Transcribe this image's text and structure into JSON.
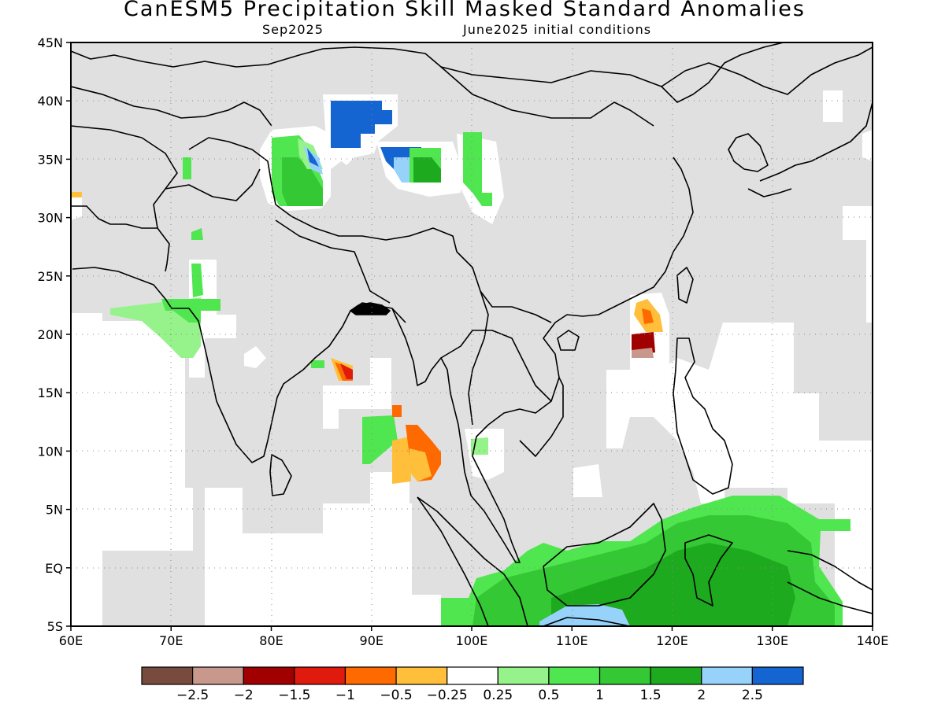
{
  "title": "CanESM5 Precipitation Skill Masked Standard Anomalies",
  "subtitle_left": "Sep2025",
  "subtitle_right": "June2025 initial conditions",
  "map": {
    "lon_range": [
      60,
      140
    ],
    "lat_range": [
      -5,
      45
    ],
    "lon_ticks": [
      "60E",
      "70E",
      "80E",
      "90E",
      "100E",
      "110E",
      "120E",
      "130E",
      "140E"
    ],
    "lat_ticks": [
      "5S",
      "EQ",
      "5N",
      "10N",
      "15N",
      "20N",
      "25N",
      "30N",
      "35N",
      "40N",
      "45N"
    ],
    "colors": {
      "masked": "#e0e0e0",
      "frame": "#000000"
    }
  },
  "colorbar": {
    "colors": [
      "#774c3e",
      "#c8988c",
      "#a00000",
      "#e01a0c",
      "#ff6a00",
      "#ffbf3a",
      "#ffffff",
      "#96f28a",
      "#50e650",
      "#34c834",
      "#1eaa1e",
      "#96d2fa",
      "#1464d2"
    ],
    "labels": [
      "−2.5",
      "−2",
      "−1.5",
      "−1",
      "−0.5",
      "−0.25",
      "0.25",
      "0.5",
      "1",
      "1.5",
      "2",
      "2.5"
    ]
  }
}
